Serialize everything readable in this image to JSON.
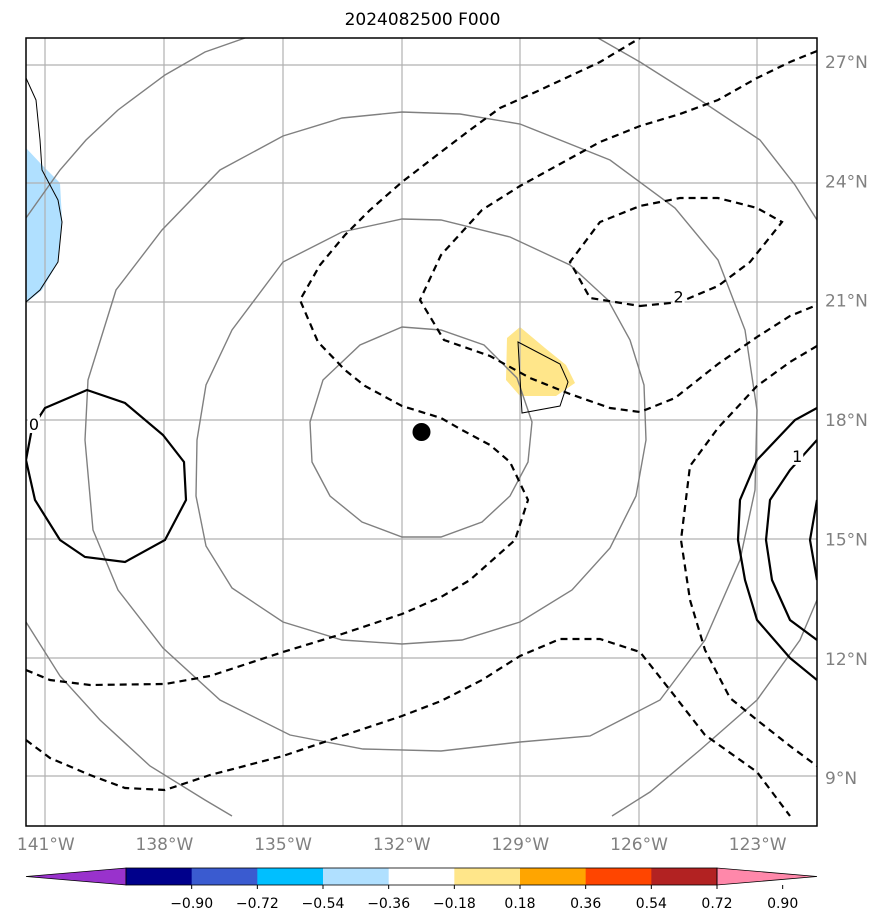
{
  "title": "2024082500 F000",
  "map": {
    "lon_range": [
      -141.5,
      -121.5
    ],
    "lat_range": [
      7.8,
      27.6
    ],
    "lon_ticks": [
      {
        "value": -141,
        "label": "141°W"
      },
      {
        "value": -138,
        "label": "138°W"
      },
      {
        "value": -135,
        "label": "135°W"
      },
      {
        "value": -132,
        "label": "132°W"
      },
      {
        "value": -129,
        "label": "129°W"
      },
      {
        "value": -126,
        "label": "126°W"
      },
      {
        "value": -123,
        "label": "123°W"
      }
    ],
    "lat_ticks": [
      {
        "value": 27,
        "label": "27°N"
      },
      {
        "value": 24,
        "label": "24°N"
      },
      {
        "value": 21,
        "label": "21°N"
      },
      {
        "value": 18,
        "label": "18°N"
      },
      {
        "value": 15,
        "label": "15°N"
      },
      {
        "value": 12,
        "label": "12°N"
      },
      {
        "value": 9,
        "label": "9°N"
      }
    ],
    "grid": true,
    "storm_center": {
      "lon": -131.5,
      "lat": 17.7
    },
    "contour_labels": [
      {
        "text": "2",
        "lon": -125.0,
        "lat": 21.1
      },
      {
        "text": "0",
        "lon": -141.3,
        "lat": 17.9
      },
      {
        "text": "1",
        "lon": -122.0,
        "lat": 17.1
      }
    ]
  },
  "colorbar": {
    "colors": [
      "#9932cc",
      "#00008b",
      "#3a5bd0",
      "#00bfff",
      "#b0e0ff",
      "#ffffff",
      "#ffe68a",
      "#ffa500",
      "#ff4500",
      "#b22222",
      "#ff88aa"
    ],
    "ticks": [
      "−0.90",
      "−0.72",
      "−0.54",
      "−0.36",
      "−0.18",
      "0.18",
      "0.36",
      "0.54",
      "0.72",
      "0.90"
    ]
  }
}
